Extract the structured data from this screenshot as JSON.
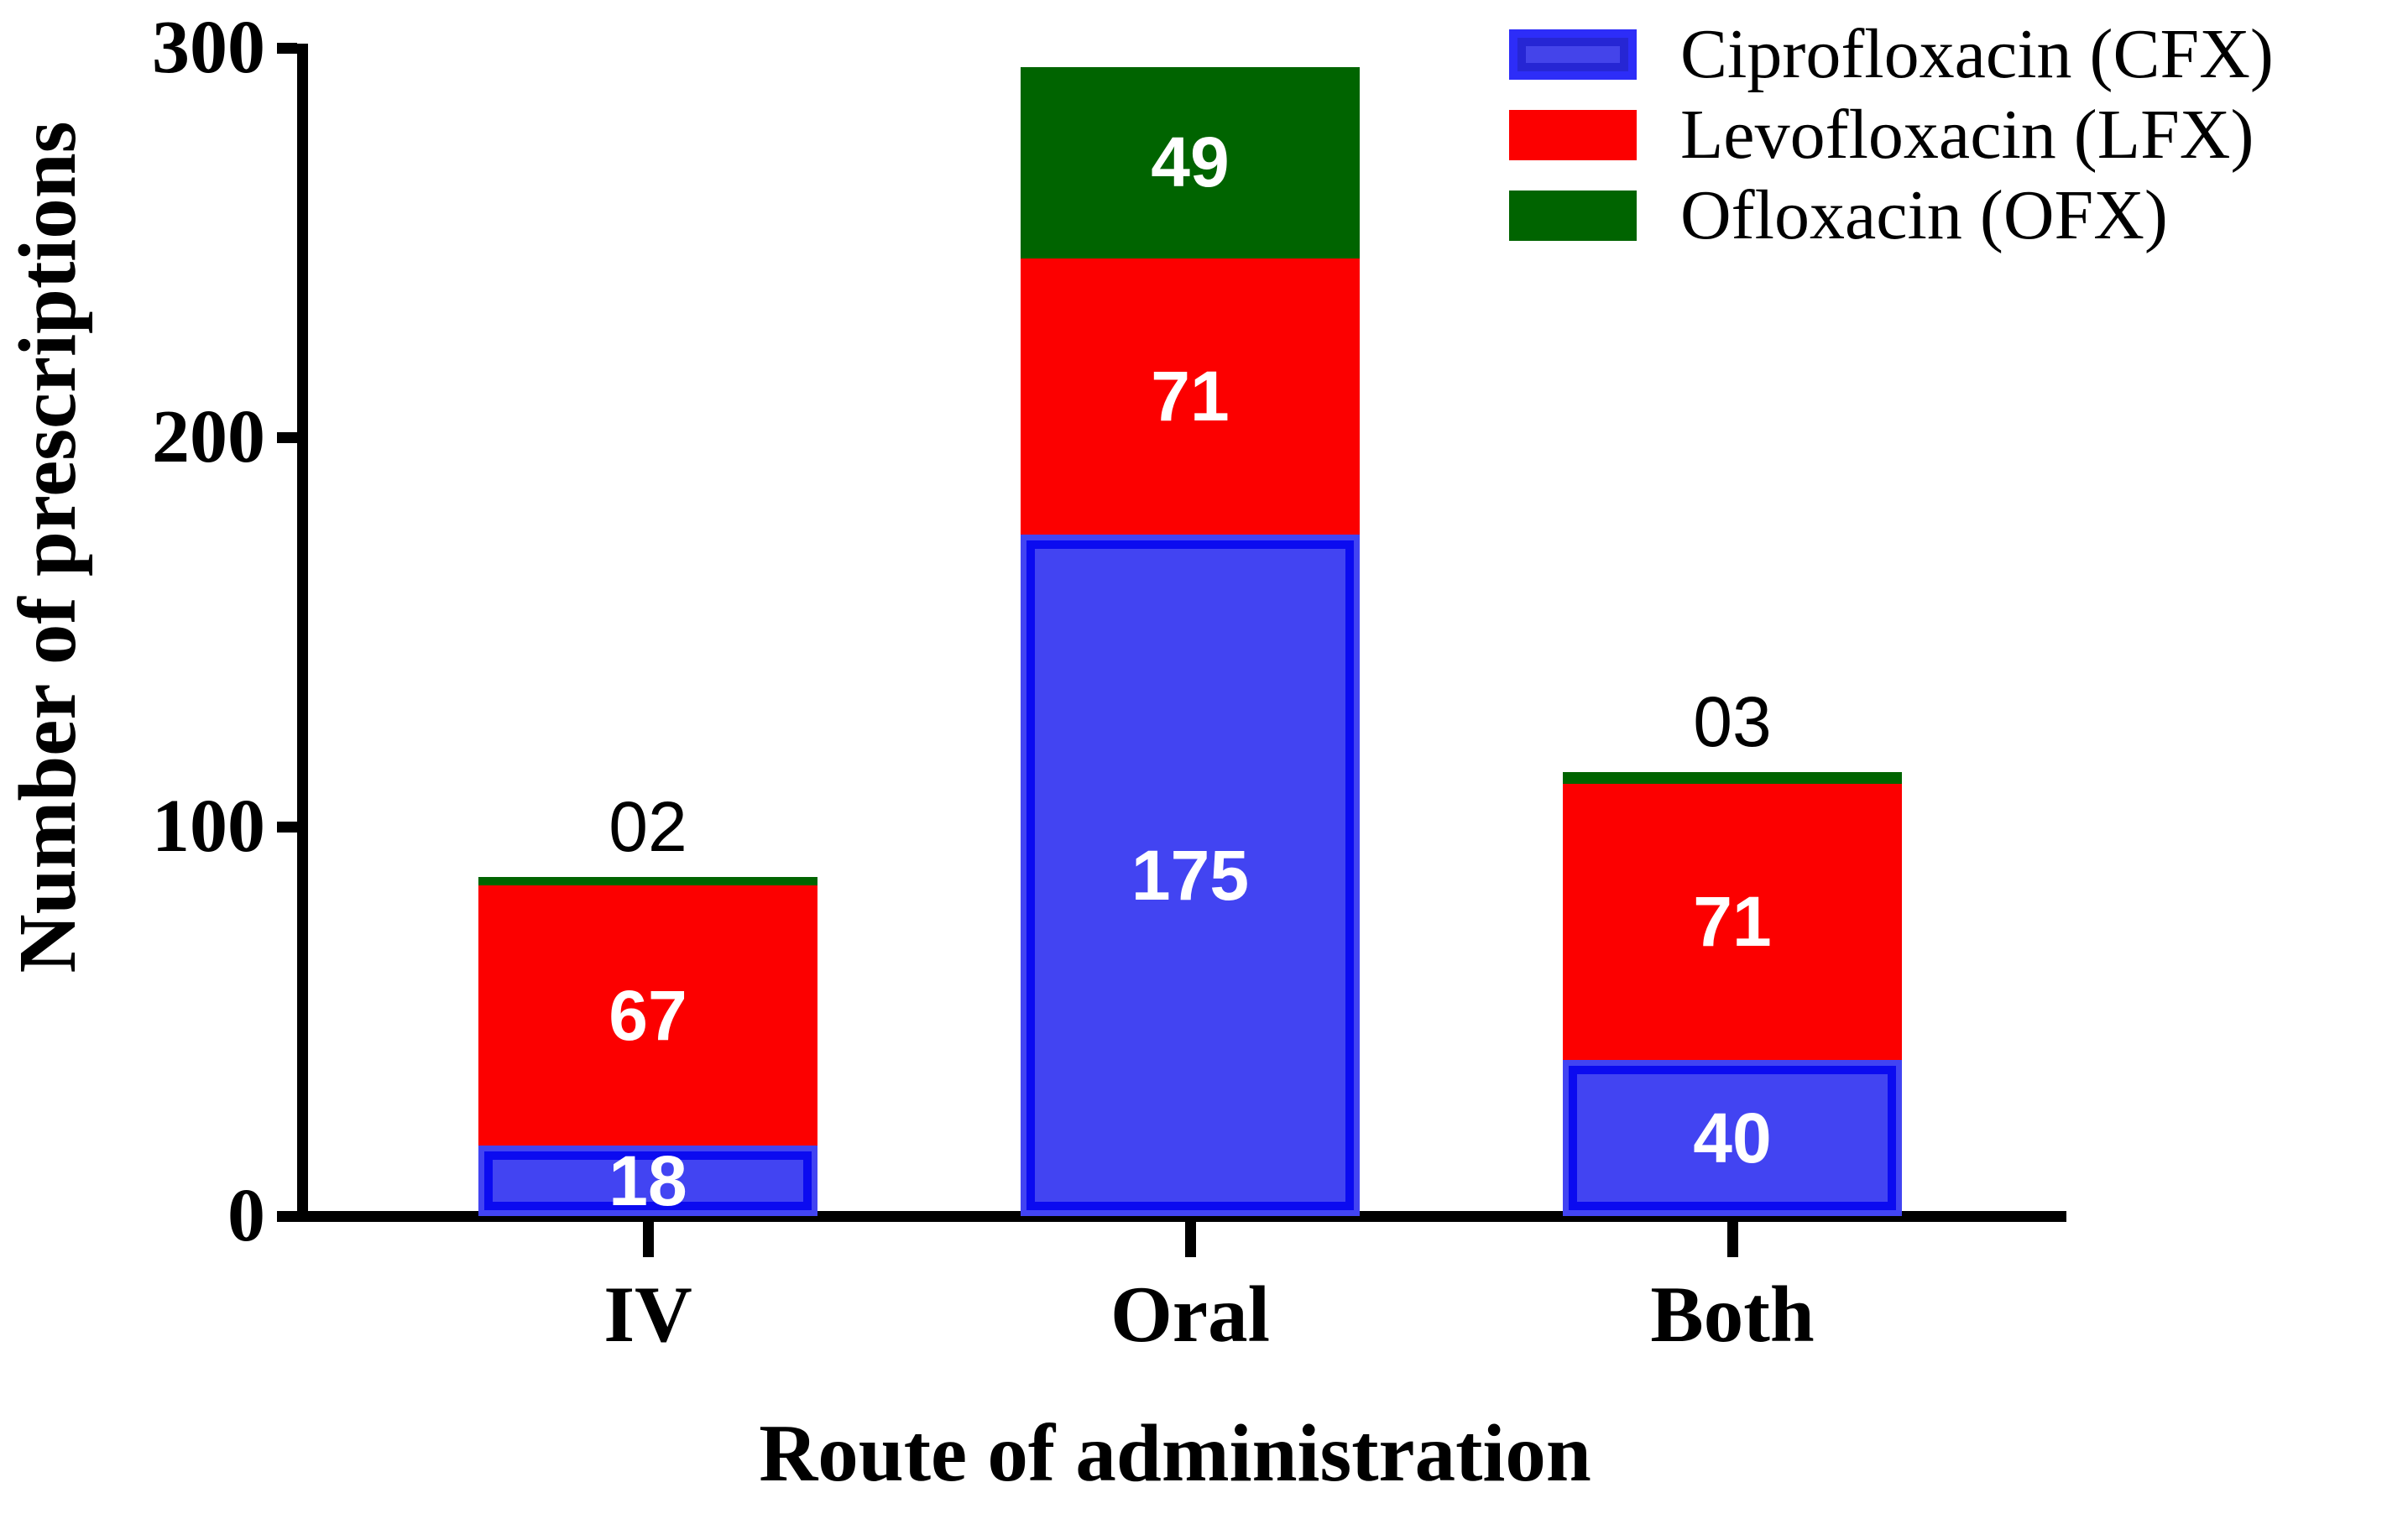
{
  "chart_data": {
    "type": "bar",
    "stacked": true,
    "title": "",
    "xlabel": "Route of administration",
    "ylabel": "Number of prescriptions",
    "categories": [
      "IV",
      "Oral",
      "Both"
    ],
    "series": [
      {
        "name": "Ciprofloxacin (CFX)",
        "color": "#4244f2",
        "border_color": "#0b0bf0",
        "values": [
          18,
          175,
          40
        ]
      },
      {
        "name": "Levofloxacin (LFX)",
        "color": "#fc0000",
        "border_color": "#fc0000",
        "values": [
          67,
          71,
          71
        ]
      },
      {
        "name": "Ofloxacin (OFX)",
        "color": "#006400",
        "border_color": "#006400",
        "values": [
          2,
          49,
          3
        ]
      }
    ],
    "inside_labels": [
      [
        "18",
        "175",
        "40"
      ],
      [
        "67",
        "71",
        "71"
      ],
      [
        "",
        "49",
        ""
      ]
    ],
    "above_bar_labels": [
      "02",
      "",
      "03"
    ],
    "yticks": [
      0,
      100,
      200,
      300
    ],
    "ylim": [
      0,
      300
    ],
    "grid": false,
    "legend_position": "top-right",
    "axis_color": "#000000",
    "inside_label_color": "#ffffff",
    "above_label_color": "#000000",
    "background": "#ffffff"
  },
  "legend": {
    "items": [
      {
        "label": "Ciprofloxacin (CFX)",
        "swatch": "blue-outlined-swatch"
      },
      {
        "label": "Levofloxacin (LFX)",
        "swatch": "red-swatch"
      },
      {
        "label": "Ofloxacin (OFX)",
        "swatch": "green-swatch"
      }
    ]
  }
}
